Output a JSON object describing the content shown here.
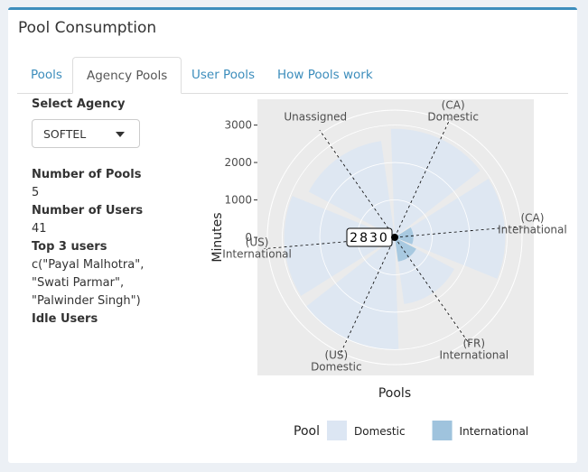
{
  "panel": {
    "title": "Pool Consumption"
  },
  "tabs": [
    "Pools",
    "Agency Pools",
    "User Pools",
    "How Pools work"
  ],
  "active_tab": 1,
  "sidebar": {
    "select_label": "Select Agency",
    "select_value": "SOFTEL",
    "fields": [
      {
        "label": "Number of Pools",
        "lines": [
          "5"
        ]
      },
      {
        "label": "Number of Users",
        "lines": [
          "41"
        ]
      },
      {
        "label": "Top 3 users",
        "lines": [
          "c(\"Payal Malhotra\",",
          "\"Swati Parmar\",",
          "\"Palwinder Singh\")"
        ]
      },
      {
        "label": "Idle Users"
      }
    ]
  },
  "chart_data": {
    "type": "polar_bar",
    "x_label": "Pools",
    "y_label": "Minutes",
    "categories": [
      "(CA)\nDomestic",
      "(CA)\nInternational",
      "(FR)\nInternational",
      "(US)\nDomestic",
      "(US)\nInternational",
      "Unassigned"
    ],
    "series": [
      {
        "name": "Domestic",
        "color": "#dce6f3",
        "values": [
          2900,
          2950,
          1800,
          3000,
          2950,
          2600
        ]
      },
      {
        "name": "International",
        "color": "#9fc3dd",
        "values": [
          0,
          500,
          650,
          0,
          0,
          0
        ]
      }
    ],
    "ylim": [
      0,
      3400
    ],
    "yticks": [
      0,
      1000,
      2000,
      3000
    ],
    "grid": true,
    "legend_title": "Pool",
    "annotation": "2830"
  }
}
